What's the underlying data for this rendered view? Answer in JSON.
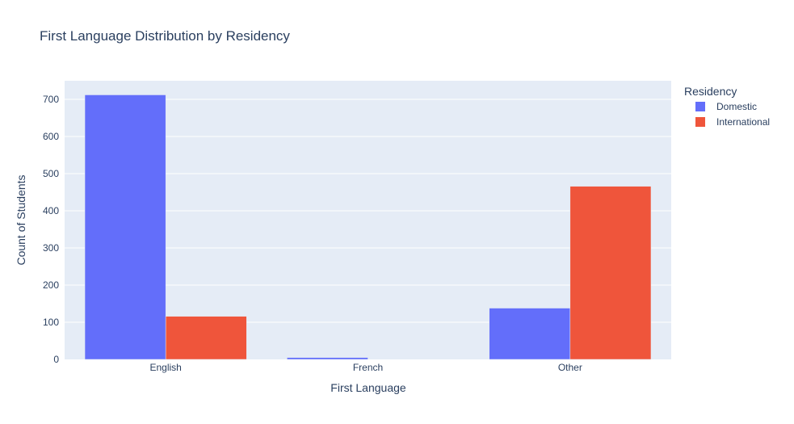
{
  "chart_data": {
    "type": "bar",
    "title": "First Language Distribution by Residency",
    "xlabel": "First Language",
    "ylabel": "Count of Students",
    "categories": [
      "English",
      "French",
      "Other"
    ],
    "series": [
      {
        "name": "Domestic",
        "values": [
          712,
          5,
          138
        ],
        "color": "#636efa"
      },
      {
        "name": "International",
        "values": [
          116,
          0,
          466
        ],
        "color": "#ef553b"
      }
    ],
    "ylim": [
      0,
      750
    ],
    "yticks": [
      0,
      100,
      200,
      300,
      400,
      500,
      600,
      700
    ],
    "grid": true,
    "legend": {
      "title": "Residency",
      "position": "top-right"
    },
    "plot_background": "#e5ecf6"
  }
}
